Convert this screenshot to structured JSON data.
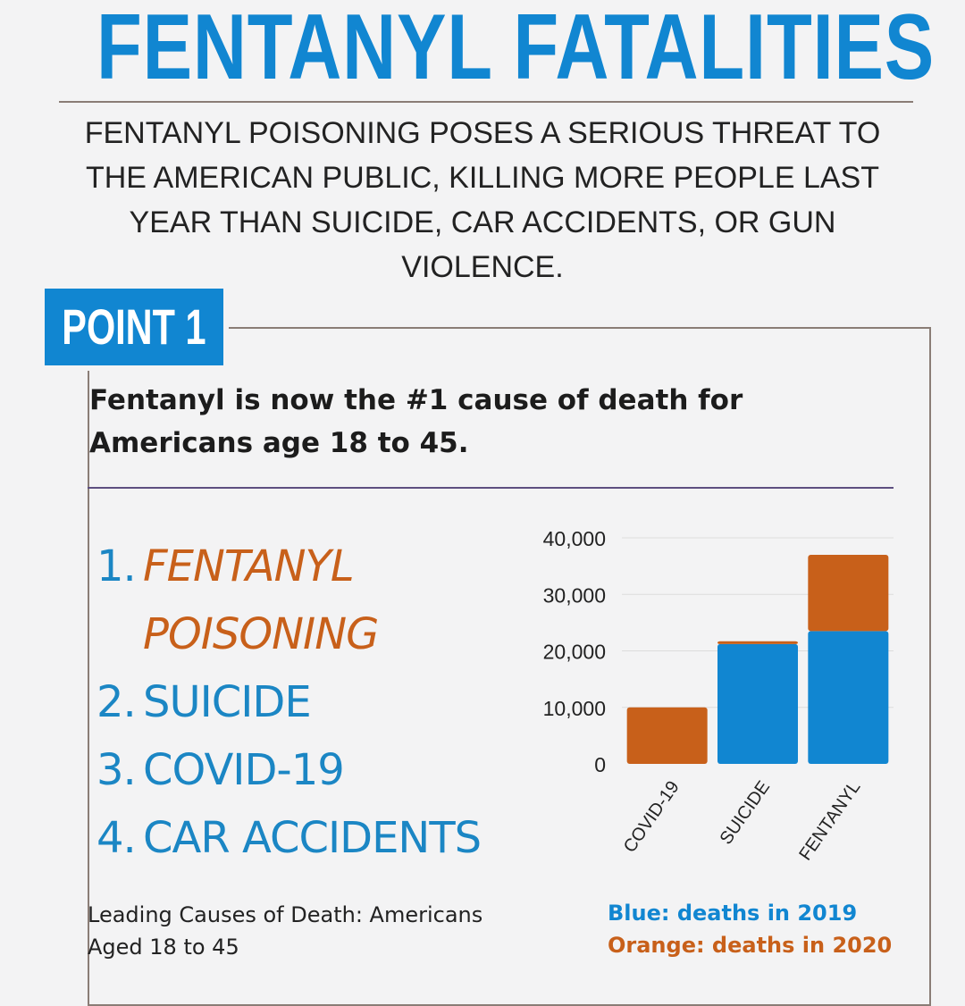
{
  "header": {
    "title": "FENTANYL FATALITIES",
    "intro": "FENTANYL POISONING POSES A SERIOUS THREAT TO THE AMERICAN PUBLIC, KILLING MORE PEOPLE LAST YEAR THAN SUICIDE, CAR ACCIDENTS, OR GUN VIOLENCE."
  },
  "point": {
    "tab_label": "POINT 1",
    "text": "Fentanyl is now the #1 cause of death for Americans age 18 to 45."
  },
  "ranking": {
    "items": [
      {
        "number": "1.",
        "label_line1": "FENTANYL",
        "label_line2": "POISONING"
      },
      {
        "number": "2.",
        "label": "SUICIDE"
      },
      {
        "number": "3.",
        "label": "COVID-19"
      },
      {
        "number": "4.",
        "label": "CAR ACCIDENTS"
      }
    ],
    "caption_line1": "Leading Causes of Death: Americans",
    "caption_line2": "Aged 18 to 45"
  },
  "legend": {
    "blue": "Blue: deaths in 2019",
    "orange": "Orange: deaths in 2020"
  },
  "colors": {
    "accent_blue": "#1186d1",
    "accent_orange": "#c8601a",
    "background": "#f3f3f4"
  },
  "chart_data": {
    "type": "bar",
    "stacked": true,
    "categories": [
      "COVID-19",
      "SUICIDE",
      "FENTANYL"
    ],
    "series": [
      {
        "name": "deaths in 2019",
        "color": "#1186d1",
        "values": [
          0,
          21200,
          23500
        ]
      },
      {
        "name": "deaths in 2020",
        "color": "#c8601a",
        "values": [
          10000,
          500,
          13500
        ]
      }
    ],
    "y_ticks": [
      "0",
      "10,000",
      "20,000",
      "30,000",
      "40,000"
    ],
    "y_tick_values": [
      0,
      10000,
      20000,
      30000,
      40000
    ],
    "ylim": [
      0,
      40000
    ],
    "grid": true
  }
}
